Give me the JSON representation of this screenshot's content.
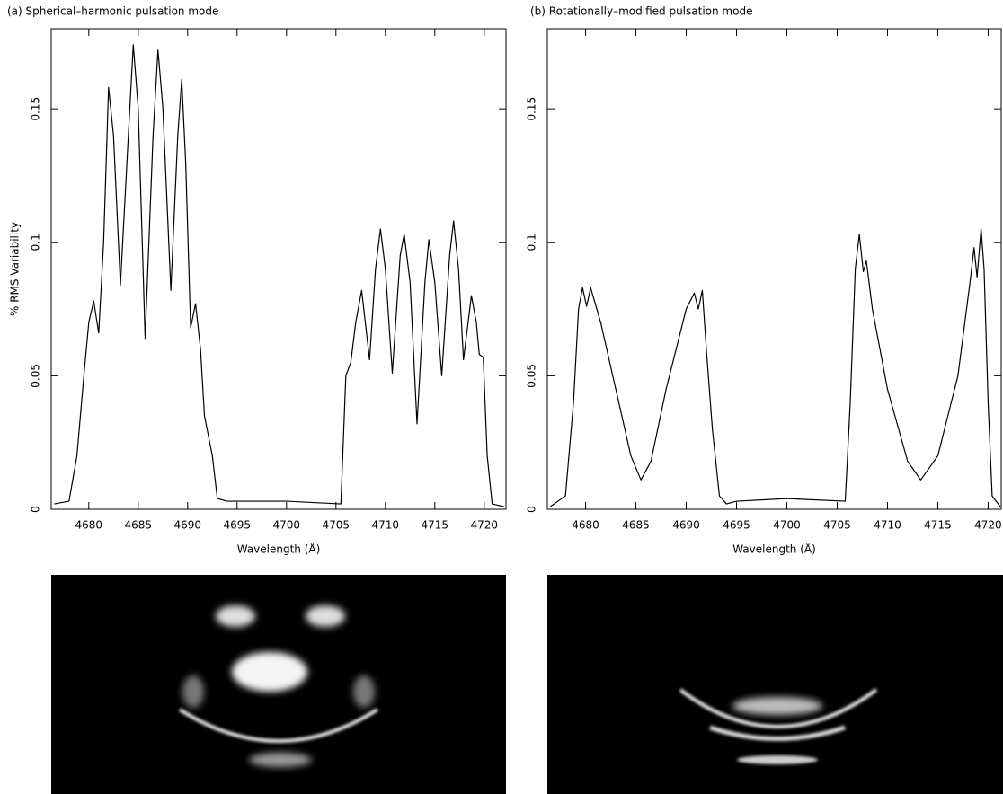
{
  "chart_data": [
    {
      "type": "line",
      "title": "(a) Spherical–harmonic pulsation mode",
      "x_label": "Wavelength (Å)",
      "y_label": "% RMS Variability",
      "color": "#000000",
      "xlim": [
        4676.2,
        4722.2
      ],
      "ylim": [
        0,
        0.18
      ],
      "xticks": [
        4680,
        4685,
        4690,
        4695,
        4700,
        4705,
        4710,
        4715,
        4720
      ],
      "yticks": [
        0,
        0.05,
        0.1,
        0.15
      ],
      "x": [
        4676.5,
        4678,
        4678.8,
        4679.5,
        4680,
        4680.5,
        4681,
        4681.5,
        4682,
        4682.5,
        4683.2,
        4684,
        4684.5,
        4685,
        4685.7,
        4686.5,
        4687,
        4687.5,
        4688.3,
        4689,
        4689.4,
        4689.8,
        4690.3,
        4690.8,
        4691.3,
        4691.7,
        4692.5,
        4693,
        4694,
        4700,
        4705.5,
        4706,
        4706.5,
        4707,
        4707.6,
        4708.4,
        4709,
        4709.5,
        4710,
        4710.7,
        4711.5,
        4711.9,
        4712.5,
        4713.2,
        4714,
        4714.4,
        4715,
        4715.7,
        4716.5,
        4716.9,
        4717.4,
        4717.9,
        4718.7,
        4719.2,
        4719.5,
        4719.9,
        4720.3,
        4720.8,
        4722
      ],
      "values": [
        0.002,
        0.003,
        0.02,
        0.05,
        0.07,
        0.078,
        0.066,
        0.1,
        0.158,
        0.14,
        0.084,
        0.14,
        0.174,
        0.15,
        0.064,
        0.14,
        0.172,
        0.15,
        0.082,
        0.14,
        0.161,
        0.13,
        0.068,
        0.077,
        0.06,
        0.035,
        0.02,
        0.004,
        0.003,
        0.003,
        0.002,
        0.05,
        0.055,
        0.07,
        0.082,
        0.056,
        0.09,
        0.105,
        0.09,
        0.051,
        0.095,
        0.103,
        0.085,
        0.032,
        0.085,
        0.101,
        0.085,
        0.05,
        0.095,
        0.108,
        0.09,
        0.056,
        0.08,
        0.07,
        0.058,
        0.057,
        0.02,
        0.002,
        0.001
      ]
    },
    {
      "type": "line",
      "title": "(b) Rotationally–modified pulsation mode",
      "x_label": "Wavelength (Å)",
      "color": "#000000",
      "xlim": [
        4676.2,
        4721.3
      ],
      "ylim": [
        0,
        0.18
      ],
      "xticks": [
        4680,
        4685,
        4690,
        4695,
        4700,
        4705,
        4710,
        4715,
        4720
      ],
      "yticks": [
        0,
        0.05,
        0.1,
        0.15
      ],
      "x": [
        4676.5,
        4678,
        4678.8,
        4679.3,
        4679.7,
        4680.1,
        4680.5,
        4681.5,
        4683,
        4684.5,
        4685.5,
        4686.5,
        4688,
        4690,
        4690.8,
        4691.2,
        4691.6,
        4692,
        4692.6,
        4693.3,
        4694,
        4695,
        4700,
        4705.8,
        4706.3,
        4706.8,
        4707.2,
        4707.6,
        4707.9,
        4708.5,
        4710,
        4712,
        4713.3,
        4715,
        4717,
        4718.2,
        4718.6,
        4718.9,
        4719.3,
        4719.6,
        4720,
        4720.4,
        4721.2
      ],
      "values": [
        0.001,
        0.005,
        0.04,
        0.075,
        0.083,
        0.076,
        0.083,
        0.07,
        0.045,
        0.02,
        0.011,
        0.018,
        0.045,
        0.075,
        0.081,
        0.075,
        0.082,
        0.06,
        0.03,
        0.005,
        0.002,
        0.003,
        0.004,
        0.003,
        0.04,
        0.09,
        0.103,
        0.089,
        0.093,
        0.075,
        0.045,
        0.018,
        0.011,
        0.02,
        0.05,
        0.085,
        0.098,
        0.087,
        0.105,
        0.09,
        0.04,
        0.005,
        0.001
      ]
    }
  ]
}
